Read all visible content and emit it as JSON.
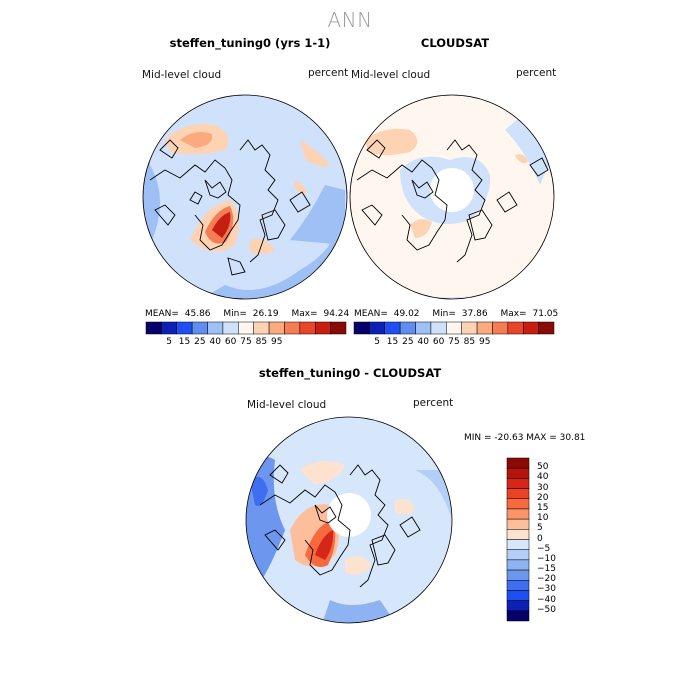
{
  "main_title": "ANN",
  "panels": {
    "model": {
      "title": "steffen_tuning0 (yrs 1-1)",
      "variable": "Mid-level cloud",
      "units": "percent",
      "mean_label": "MEAN=",
      "mean": "45.86",
      "min_label": "Min=",
      "min": "26.19",
      "max_label": "Max=",
      "max": "94.24"
    },
    "obs": {
      "title": "CLOUDSAT",
      "variable": "Mid-level cloud",
      "units": "percent",
      "mean_label": "MEAN=",
      "mean": "49.02",
      "min_label": "Min=",
      "min": "37.86",
      "max_label": "Max=",
      "max": "71.05"
    },
    "diff": {
      "title": "steffen_tuning0 - CLOUDSAT",
      "variable": "Mid-level cloud",
      "units": "percent",
      "stats": "MIN = -20.63 MAX =  30.81"
    }
  },
  "colorbar_abs": {
    "ticks": [
      "5",
      "15",
      "25",
      "40",
      "60",
      "75",
      "85",
      "95"
    ],
    "colors": [
      "#08006a",
      "#0b20b5",
      "#1f4ff0",
      "#5f8df2",
      "#9fc0f5",
      "#cfe1fb",
      "#fff7ef",
      "#fed3b4",
      "#fba97f",
      "#f57c55",
      "#e8462a",
      "#c71e12",
      "#8a0a05"
    ]
  },
  "colorbar_diff": {
    "ticks": [
      "50",
      "40",
      "30",
      "20",
      "15",
      "10",
      "5",
      "0",
      "−5",
      "−10",
      "−15",
      "−20",
      "−30",
      "−40",
      "−50"
    ],
    "colors": [
      "#8a0a05",
      "#b5140c",
      "#d6261a",
      "#ea4324",
      "#f7693e",
      "#fb9468",
      "#fdbf9b",
      "#fde3cf",
      "#d6e6fb",
      "#b4cff7",
      "#8eb3f2",
      "#6d97ee",
      "#3f6ff0",
      "#1f4ff0",
      "#0b20b5",
      "#08006a"
    ]
  },
  "chart_data": [
    {
      "type": "heatmap",
      "title": "steffen_tuning0 (yrs 1-1)",
      "projection": "north-polar-stereographic",
      "variable": "Mid-level cloud",
      "units": "percent",
      "mean": 45.86,
      "min": 26.19,
      "max": 94.24,
      "contour_levels": [
        5,
        15,
        25,
        40,
        60,
        75,
        85,
        95
      ]
    },
    {
      "type": "heatmap",
      "title": "CLOUDSAT",
      "projection": "north-polar-stereographic",
      "variable": "Mid-level cloud",
      "units": "percent",
      "mean": 49.02,
      "min": 37.86,
      "max": 71.05,
      "contour_levels": [
        5,
        15,
        25,
        40,
        60,
        75,
        85,
        95
      ]
    },
    {
      "type": "heatmap",
      "title": "steffen_tuning0 - CLOUDSAT",
      "projection": "north-polar-stereographic",
      "variable": "Mid-level cloud",
      "units": "percent",
      "min": -20.63,
      "max": 30.81,
      "contour_levels": [
        -50,
        -40,
        -30,
        -20,
        -15,
        -10,
        -5,
        0,
        5,
        10,
        15,
        20,
        30,
        40,
        50
      ]
    }
  ]
}
